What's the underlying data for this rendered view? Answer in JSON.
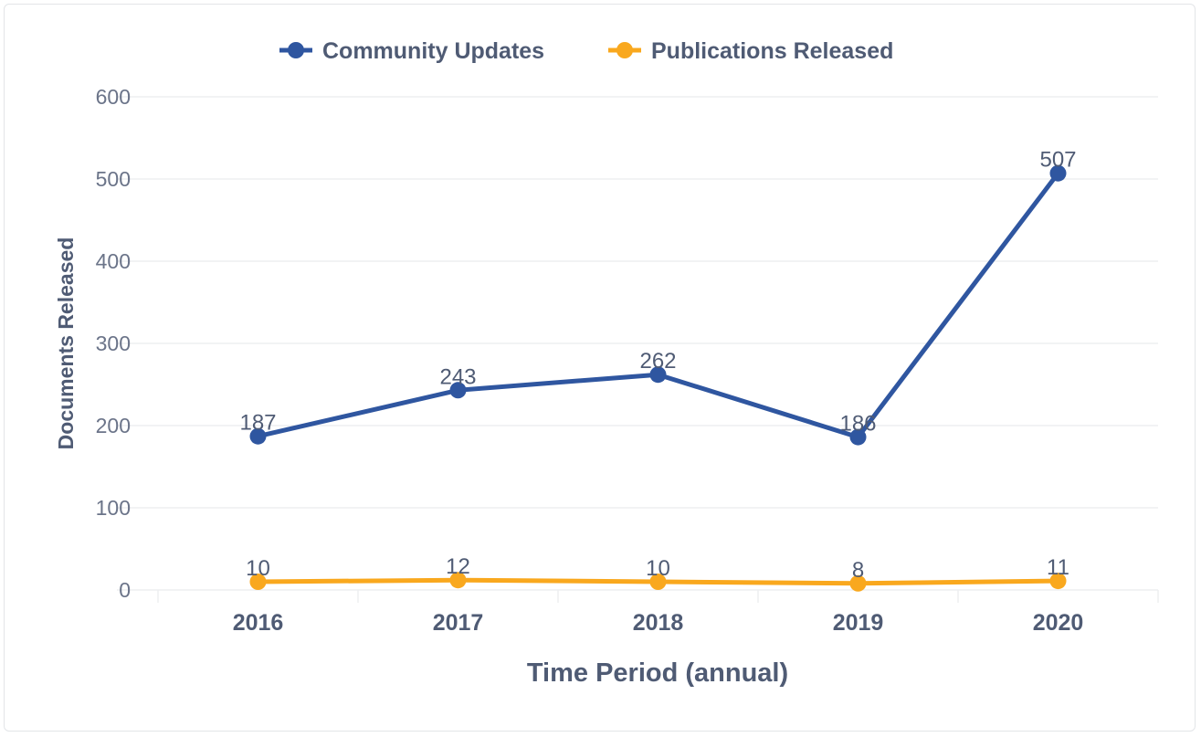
{
  "chart_data": {
    "type": "line",
    "title": "",
    "xlabel": "Time Period (annual)",
    "ylabel": "Documents Released",
    "categories": [
      "2016",
      "2017",
      "2018",
      "2019",
      "2020"
    ],
    "ylim": [
      0,
      600
    ],
    "yticks": [
      0,
      100,
      200,
      300,
      400,
      500,
      600
    ],
    "grid": true,
    "legend_position": "top-center",
    "series": [
      {
        "name": "Community Updates",
        "color": "#2f56a0",
        "values": [
          187,
          243,
          262,
          186,
          507
        ]
      },
      {
        "name": "Publications Released",
        "color": "#f9a81e",
        "values": [
          10,
          12,
          10,
          8,
          11
        ]
      }
    ]
  }
}
